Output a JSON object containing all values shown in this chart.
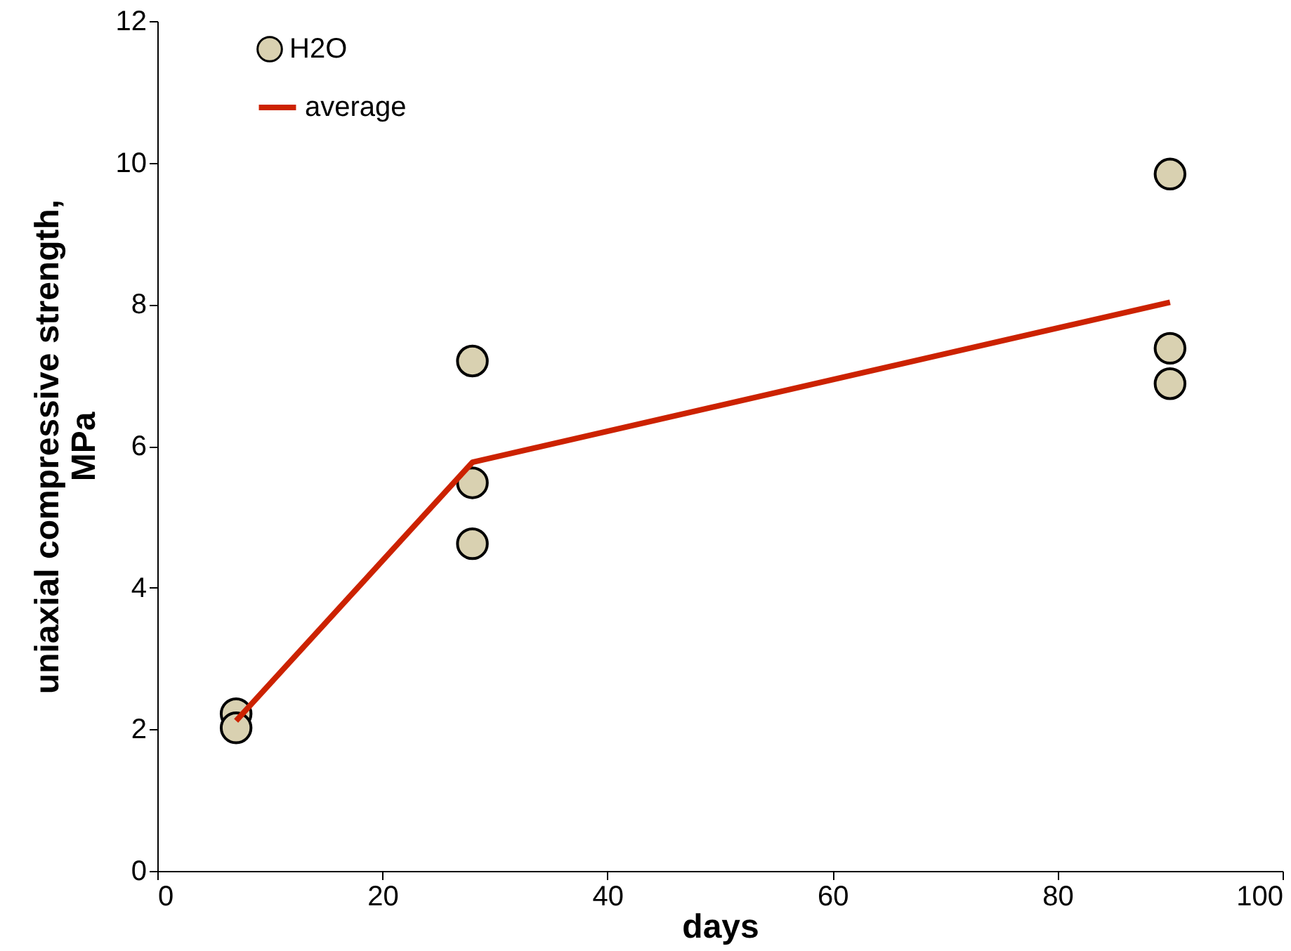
{
  "chart_data": {
    "type": "scatter",
    "xlabel": "days",
    "ylabel": "uniaxial compressive strength, MPa",
    "xlim": [
      0,
      100
    ],
    "xticks": [
      0,
      20,
      40,
      60,
      80,
      100
    ],
    "ylim": [
      0,
      12
    ],
    "yticks": [
      0,
      2,
      4,
      6,
      8,
      10,
      12
    ],
    "grid": false,
    "legend": "top left",
    "series": [
      {
        "name": "H2O",
        "color": "#d9d1b1",
        "marker": "circle",
        "x": [
          7,
          7,
          28,
          28,
          28,
          90,
          90,
          90
        ],
        "values": [
          2.22,
          2.02,
          7.2,
          5.48,
          4.62,
          9.84,
          7.38,
          6.88
        ]
      },
      {
        "name": "average",
        "type": "line",
        "color": "#cc2200",
        "marker": "none",
        "x": [
          7,
          28,
          90
        ],
        "values": [
          2.12,
          5.77,
          8.03
        ]
      }
    ]
  }
}
